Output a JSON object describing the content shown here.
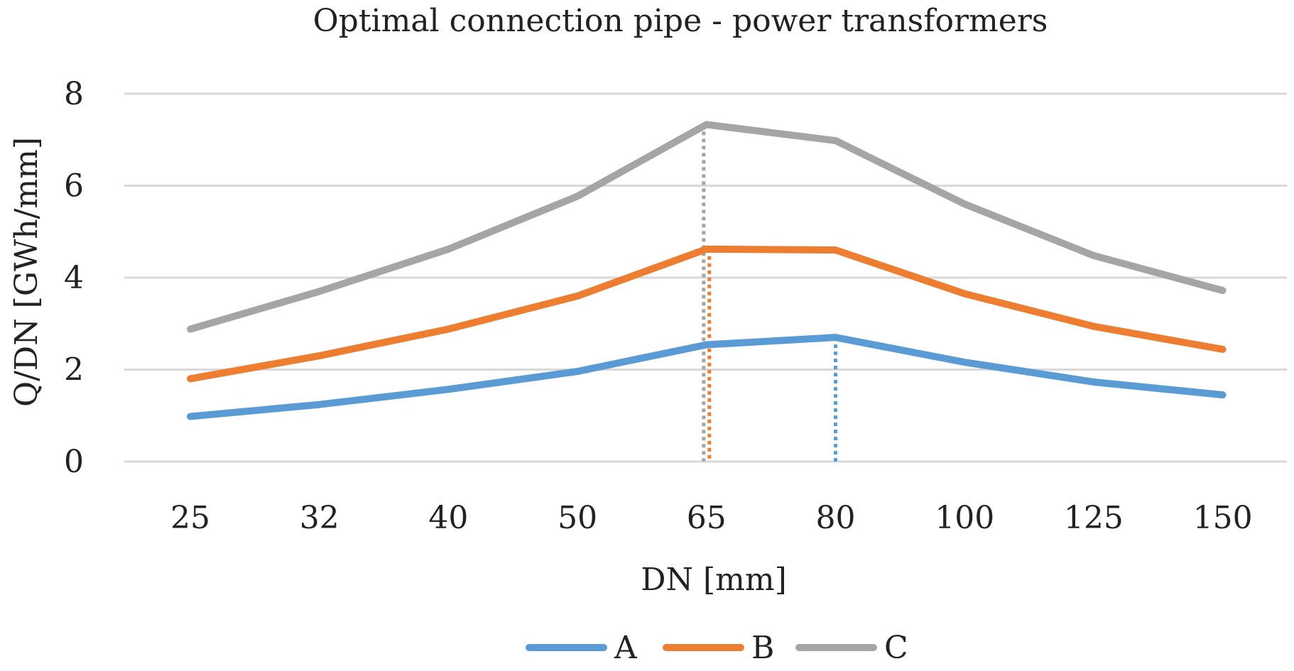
{
  "chart_data": {
    "type": "line",
    "title": "Optimal connection pipe - power transformers",
    "xlabel": "DN [mm]",
    "ylabel": "Q/DN [GWh/mm]",
    "categories": [
      "25",
      "32",
      "40",
      "50",
      "65",
      "80",
      "100",
      "125",
      "150"
    ],
    "ylim": [
      0,
      8
    ],
    "yticks": [
      "0",
      "2",
      "4",
      "6",
      "8"
    ],
    "grid": true,
    "legend_position": "bottom",
    "series": [
      {
        "name": "A",
        "color": "#5b9bd5",
        "values": [
          0.98,
          1.24,
          1.57,
          1.96,
          2.54,
          2.7,
          2.16,
          1.73,
          1.45
        ],
        "optimum_category": "80"
      },
      {
        "name": "B",
        "color": "#ed7d31",
        "values": [
          1.8,
          2.3,
          2.88,
          3.6,
          4.62,
          4.6,
          3.65,
          2.94,
          2.44
        ],
        "optimum_category": "65"
      },
      {
        "name": "C",
        "color": "#a5a5a5",
        "values": [
          2.88,
          3.7,
          4.62,
          5.77,
          7.33,
          6.98,
          5.6,
          4.48,
          3.72
        ],
        "optimum_category": "65"
      }
    ]
  }
}
